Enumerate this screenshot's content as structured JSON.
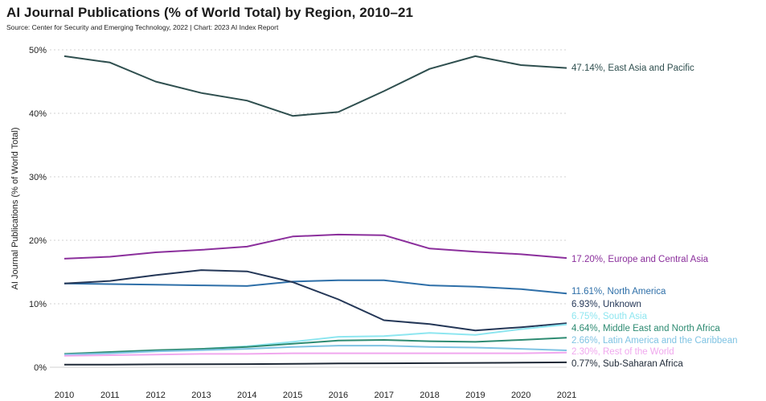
{
  "header": {
    "title": "AI Journal Publications (% of World Total) by Region, 2010–21",
    "subtitle": "Source: Center for Security and Emerging Technology, 2022 | Chart: 2023 AI Index Report"
  },
  "chart_data": {
    "type": "line",
    "x": [
      2010,
      2011,
      2012,
      2013,
      2014,
      2015,
      2016,
      2017,
      2018,
      2019,
      2020,
      2021
    ],
    "xlabel": "",
    "ylabel": "AI Journal Publications (% of World Total)",
    "ylim": [
      0,
      50
    ],
    "yticks": [
      0,
      10,
      20,
      30,
      40,
      50
    ],
    "ytick_labels": [
      "0%",
      "10%",
      "20%",
      "30%",
      "40%",
      "50%"
    ],
    "grid": "horizontal",
    "series": [
      {
        "name": "East Asia and Pacific",
        "label": "47.14%, East Asia and Pacific",
        "color": "#2f4f4f",
        "values": [
          49.0,
          48.0,
          45.0,
          43.2,
          42.0,
          39.6,
          40.2,
          43.5,
          47.0,
          49.0,
          47.6,
          47.14
        ]
      },
      {
        "name": "Europe and Central Asia",
        "label": "17.20%, Europe and Central Asia",
        "color": "#8b2f9c",
        "values": [
          17.1,
          17.4,
          18.1,
          18.5,
          19.0,
          20.6,
          20.9,
          20.8,
          18.7,
          18.2,
          17.8,
          17.2
        ]
      },
      {
        "name": "North America",
        "label": "11.61%, North America",
        "color": "#2e6fa8",
        "values": [
          13.2,
          13.1,
          13.0,
          12.9,
          12.8,
          13.5,
          13.7,
          13.7,
          12.9,
          12.7,
          12.3,
          11.61
        ]
      },
      {
        "name": "Unknown",
        "label": "6.93%, Unknown",
        "color": "#243757",
        "values": [
          13.2,
          13.6,
          14.5,
          15.3,
          15.1,
          13.4,
          10.7,
          7.4,
          6.8,
          5.8,
          6.3,
          6.93
        ]
      },
      {
        "name": "South Asia",
        "label": "6.75%, South Asia",
        "color": "#8ee6f0",
        "values": [
          2.0,
          2.3,
          2.6,
          2.9,
          3.3,
          4.0,
          4.8,
          4.9,
          5.4,
          5.1,
          6.0,
          6.75
        ]
      },
      {
        "name": "Middle East and North Africa",
        "label": "4.64%, Middle East and North Africa",
        "color": "#2e8b72",
        "values": [
          2.1,
          2.4,
          2.7,
          2.9,
          3.2,
          3.7,
          4.2,
          4.3,
          4.1,
          4.0,
          4.3,
          4.64
        ]
      },
      {
        "name": "Latin America and the Caribbean",
        "label": "2.66%, Latin America and the Caribbean",
        "color": "#7fc3e3",
        "values": [
          2.0,
          2.2,
          2.5,
          2.7,
          2.9,
          3.2,
          3.4,
          3.4,
          3.2,
          3.1,
          2.9,
          2.66
        ]
      },
      {
        "name": "Rest of the World",
        "label": "2.30%, Rest of the World",
        "color": "#f0a8ee",
        "values": [
          1.8,
          1.9,
          2.0,
          2.1,
          2.1,
          2.2,
          2.2,
          2.2,
          2.2,
          2.2,
          2.2,
          2.3
        ]
      },
      {
        "name": "Sub-Saharan Africa",
        "label": "0.77%, Sub-Saharan Africa",
        "color": "#1f2937",
        "values": [
          0.4,
          0.42,
          0.45,
          0.48,
          0.5,
          0.55,
          0.6,
          0.62,
          0.65,
          0.68,
          0.72,
          0.77
        ]
      }
    ]
  }
}
